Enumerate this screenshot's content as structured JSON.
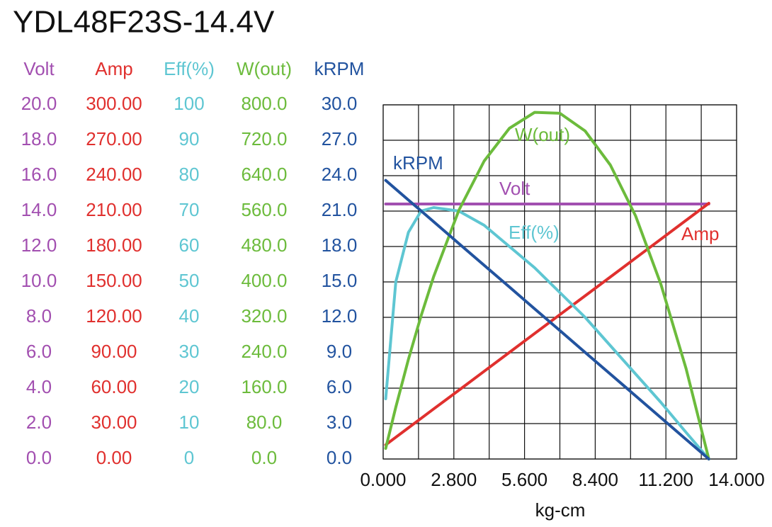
{
  "chart_data": {
    "type": "line",
    "title": "YDL48F23S-14.4V",
    "xlabel": "kg-cm",
    "x": [
      0.1,
      0.5,
      1,
      1.5,
      2,
      3,
      4,
      5,
      6,
      7,
      8,
      9,
      10,
      11,
      12,
      12.9
    ],
    "xlim": [
      0,
      14
    ],
    "xticks": [
      {
        "value": 0,
        "label": "0.000"
      },
      {
        "value": 2.8,
        "label": "2.800"
      },
      {
        "value": 5.6,
        "label": "5.600"
      },
      {
        "value": 8.4,
        "label": "8.400"
      },
      {
        "value": 11.2,
        "label": "11.200"
      },
      {
        "value": 14,
        "label": "14.000"
      }
    ],
    "grid": true,
    "series": [
      {
        "name": "Volt",
        "color": "#a24fb0",
        "ylim": [
          0,
          20
        ],
        "yticks": [
          {
            "value": 20,
            "label": "20.0"
          },
          {
            "value": 18,
            "label": "18.0"
          },
          {
            "value": 16,
            "label": "16.0"
          },
          {
            "value": 14,
            "label": "14.0"
          },
          {
            "value": 12,
            "label": "12.0"
          },
          {
            "value": 10,
            "label": "10.0"
          },
          {
            "value": 8,
            "label": "8.0"
          },
          {
            "value": 6,
            "label": "6.0"
          },
          {
            "value": 4,
            "label": "4.0"
          },
          {
            "value": 2,
            "label": "2.0"
          },
          {
            "value": 0,
            "label": "0.0"
          }
        ],
        "values": [
          14.4,
          14.4,
          14.4,
          14.4,
          14.4,
          14.4,
          14.4,
          14.4,
          14.4,
          14.4,
          14.4,
          14.4,
          14.4,
          14.4,
          14.4,
          14.4
        ]
      },
      {
        "name": "Amp",
        "color": "#e0302e",
        "ylim": [
          0,
          300
        ],
        "yticks": [
          {
            "value": 300,
            "label": "300.00"
          },
          {
            "value": 270,
            "label": "270.00"
          },
          {
            "value": 240,
            "label": "240.00"
          },
          {
            "value": 210,
            "label": "210.00"
          },
          {
            "value": 180,
            "label": "180.00"
          },
          {
            "value": 150,
            "label": "150.00"
          },
          {
            "value": 120,
            "label": "120.00"
          },
          {
            "value": 90,
            "label": "90.00"
          },
          {
            "value": 60,
            "label": "60.00"
          },
          {
            "value": 30,
            "label": "30.00"
          },
          {
            "value": 0,
            "label": "0.00"
          }
        ],
        "values": [
          12,
          18.4,
          26.4,
          34.4,
          42.4,
          58.3,
          74.3,
          90.3,
          106.3,
          122.3,
          138.2,
          154.2,
          170.2,
          186.2,
          202.2,
          216.6
        ]
      },
      {
        "name": "Eff(%)",
        "color": "#5ec6d2",
        "ylim": [
          0,
          100
        ],
        "yticks": [
          100,
          90,
          80,
          70,
          60,
          50,
          40,
          30,
          20,
          10,
          0
        ],
        "values": [
          17,
          50,
          64,
          70,
          71,
          70,
          66,
          60,
          54,
          47,
          40,
          32,
          24,
          16,
          7.5,
          0
        ]
      },
      {
        "name": "W(out)",
        "color": "#6cbb3c",
        "ylim": [
          0,
          800
        ],
        "yticks": [
          {
            "value": 800,
            "label": "800.0"
          },
          {
            "value": 720,
            "label": "720.0"
          },
          {
            "value": 640,
            "label": "640.0"
          },
          {
            "value": 560,
            "label": "560.0"
          },
          {
            "value": 480,
            "label": "480.0"
          },
          {
            "value": 400,
            "label": "400.0"
          },
          {
            "value": 320,
            "label": "320.0"
          },
          {
            "value": 240,
            "label": "240.0"
          },
          {
            "value": 160,
            "label": "160.0"
          },
          {
            "value": 80,
            "label": "80.0"
          },
          {
            "value": 0,
            "label": "0.0"
          }
        ],
        "values": [
          24,
          117,
          225,
          323,
          412,
          562,
          673,
          747,
          783,
          781,
          741,
          664,
          549,
          395,
          204,
          0
        ]
      },
      {
        "name": "kRPM",
        "color": "#22539f",
        "ylim": [
          0,
          30
        ],
        "yticks": [
          {
            "value": 30,
            "label": "30.0"
          },
          {
            "value": 27,
            "label": "27.0"
          },
          {
            "value": 24,
            "label": "24.0"
          },
          {
            "value": 21,
            "label": "21.0"
          },
          {
            "value": 18,
            "label": "18.0"
          },
          {
            "value": 15,
            "label": "15.0"
          },
          {
            "value": 12,
            "label": "12.0"
          },
          {
            "value": 9,
            "label": "9.0"
          },
          {
            "value": 6,
            "label": "6.0"
          },
          {
            "value": 3,
            "label": "3.0"
          },
          {
            "value": 0,
            "label": "0.0"
          }
        ],
        "values": [
          23.6,
          22.86,
          21.94,
          21.02,
          20.1,
          18.25,
          16.41,
          14.57,
          12.72,
          10.88,
          9.03,
          7.19,
          5.35,
          3.5,
          1.66,
          0
        ]
      }
    ]
  }
}
